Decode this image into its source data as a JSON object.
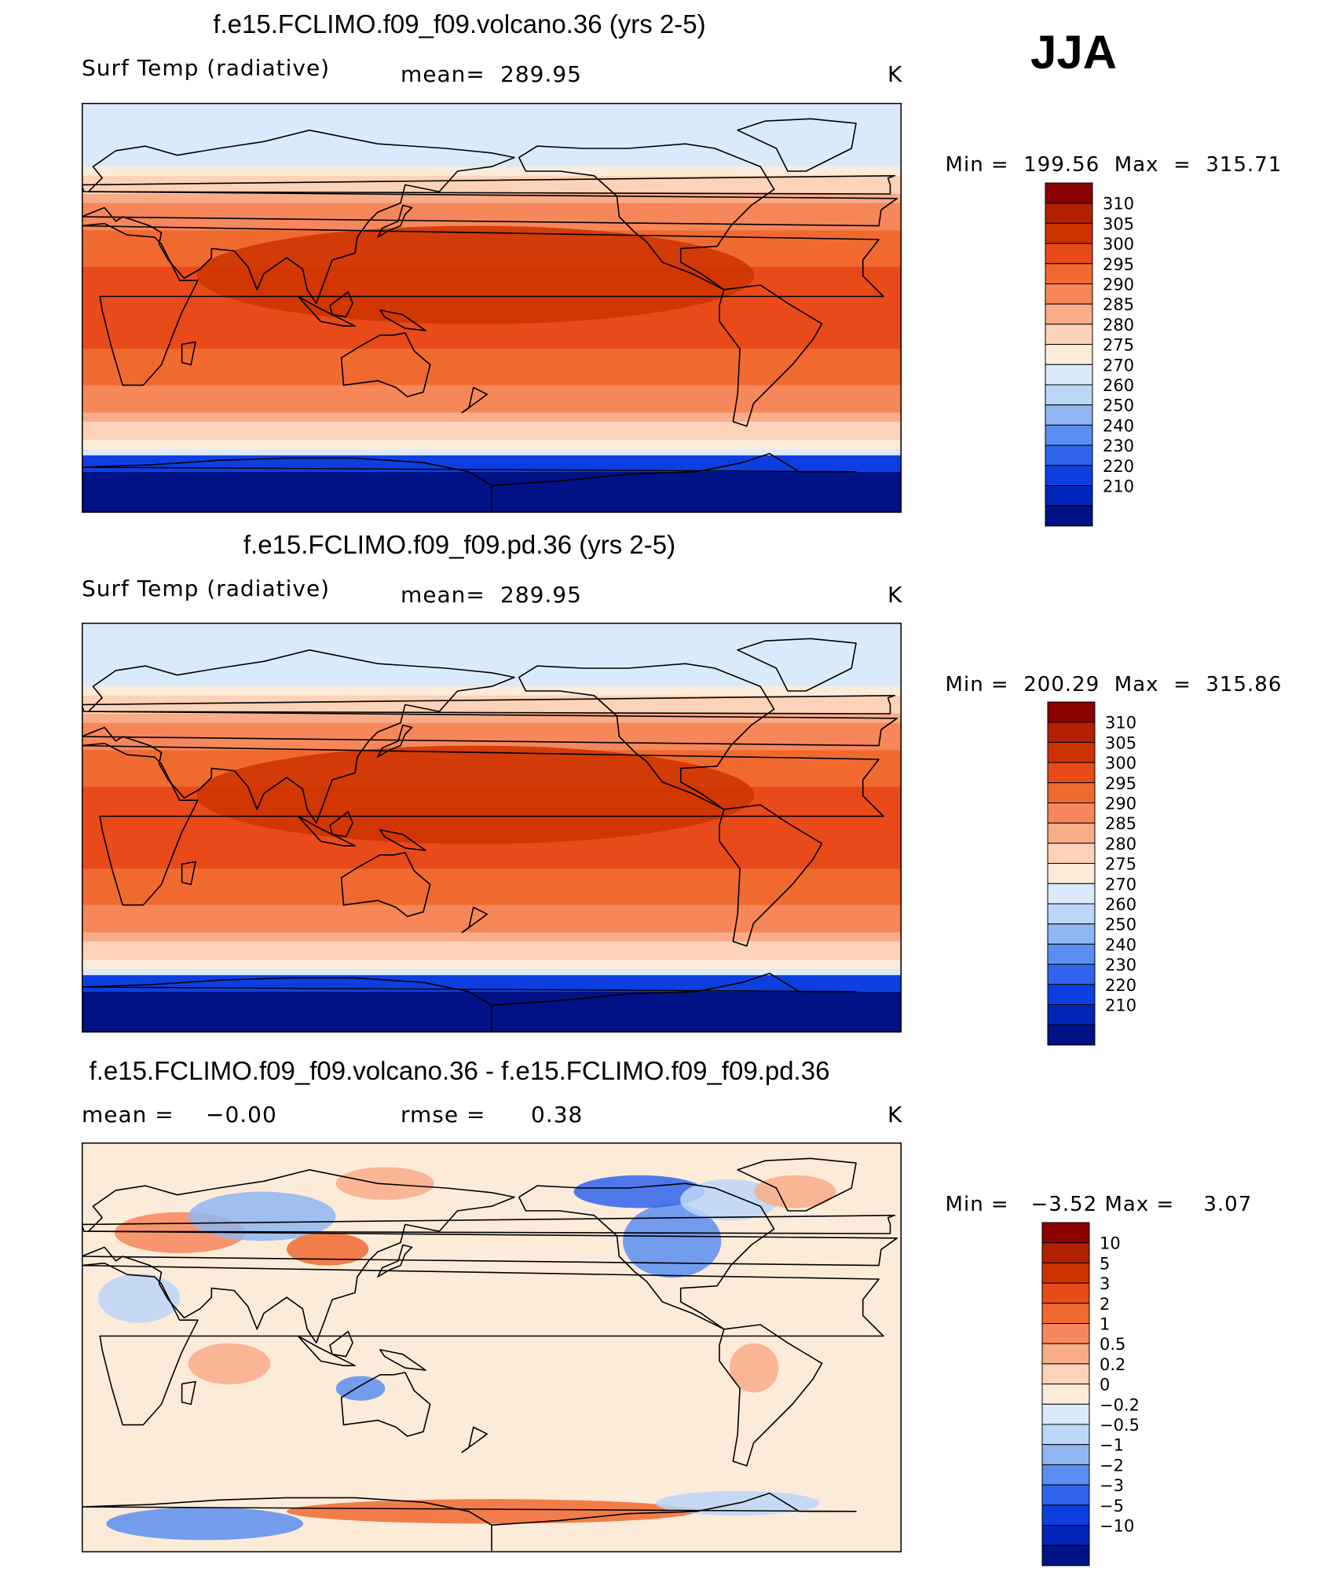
{
  "season": "JJA",
  "panels": [
    {
      "title": "f.e15.FCLIMO.f09_f09.volcano.36 (yrs 2-5)",
      "variable": "Surf Temp (radiative)",
      "stat1_label": "mean=",
      "stat1_value": "289.95",
      "unit": "K",
      "min_label": "Min",
      "min_value": "199.56",
      "max_label": "Max",
      "max_value": "315.71",
      "colorbar": {
        "levels": [
          "310",
          "305",
          "300",
          "295",
          "290",
          "285",
          "280",
          "275",
          "270",
          "260",
          "250",
          "240",
          "230",
          "220",
          "210"
        ],
        "colors": [
          "#8b0000",
          "#b22000",
          "#cc3300",
          "#e84a1a",
          "#f06a30",
          "#f6875a",
          "#f9ac88",
          "#fcd2b8",
          "#fdebd9",
          "#dbeafa",
          "#bcd6f8",
          "#8fb6f2",
          "#5a8ef0",
          "#2f64ec",
          "#0d3fe0",
          "#0025b8",
          "#001285"
        ]
      }
    },
    {
      "title": "f.e15.FCLIMO.f09_f09.pd.36 (yrs 2-5)",
      "variable": "Surf Temp (radiative)",
      "stat1_label": "mean=",
      "stat1_value": "289.95",
      "unit": "K",
      "min_label": "Min",
      "min_value": "200.29",
      "max_label": "Max",
      "max_value": "315.86",
      "colorbar": {
        "levels": [
          "310",
          "305",
          "300",
          "295",
          "290",
          "285",
          "280",
          "275",
          "270",
          "260",
          "250",
          "240",
          "230",
          "220",
          "210"
        ],
        "colors": [
          "#8b0000",
          "#b22000",
          "#cc3300",
          "#e84a1a",
          "#f06a30",
          "#f6875a",
          "#f9ac88",
          "#fcd2b8",
          "#fdebd9",
          "#dbeafa",
          "#bcd6f8",
          "#8fb6f2",
          "#5a8ef0",
          "#2f64ec",
          "#0d3fe0",
          "#0025b8",
          "#001285"
        ]
      }
    },
    {
      "title": "f.e15.FCLIMO.f09_f09.volcano.36 - f.e15.FCLIMO.f09_f09.pd.36",
      "variable": "",
      "stat1_label": "mean =",
      "stat1_value": "−0.00",
      "stat2_label": "rmse =",
      "stat2_value": "0.38",
      "unit": "K",
      "min_label": "Min",
      "min_value": "−3.52",
      "max_label": "Max",
      "max_value": "3.07",
      "colorbar": {
        "levels": [
          "10",
          "5",
          "3",
          "2",
          "1",
          "0.5",
          "0.2",
          "0",
          "−0.2",
          "−0.5",
          "−1",
          "−2",
          "−3",
          "−5",
          "−10"
        ],
        "colors": [
          "#8b0000",
          "#b22000",
          "#cc3300",
          "#e84a1a",
          "#f06a30",
          "#f6875a",
          "#f9ac88",
          "#fcd2b8",
          "#fdebd9",
          "#dbeafa",
          "#bcd6f8",
          "#8fb6f2",
          "#5a8ef0",
          "#2f64ec",
          "#0d3fe0",
          "#0025b8",
          "#001285"
        ]
      }
    }
  ]
}
